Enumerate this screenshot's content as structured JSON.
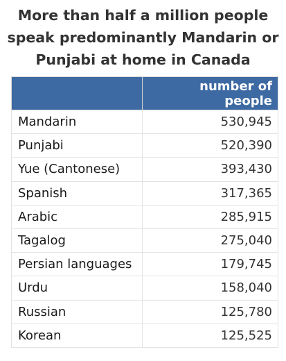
{
  "chart_data": {
    "type": "table",
    "title": "More than half a million people speak predominantly Mandarin or Punjabi at home in Canada",
    "columns": [
      "",
      "number of people"
    ],
    "rows": [
      {
        "language": "Mandarin",
        "value": "530,945"
      },
      {
        "language": "Punjabi",
        "value": "520,390"
      },
      {
        "language": "Yue (Cantonese)",
        "value": "393,430"
      },
      {
        "language": "Spanish",
        "value": "317,365"
      },
      {
        "language": "Arabic",
        "value": "285,915"
      },
      {
        "language": "Tagalog",
        "value": "275,040"
      },
      {
        "language": "Persian languages",
        "value": "179,745"
      },
      {
        "language": "Urdu",
        "value": "158,040"
      },
      {
        "language": "Russian",
        "value": "125,780"
      },
      {
        "language": "Korean",
        "value": "125,525"
      }
    ],
    "header_color": "#3e6aa3"
  }
}
